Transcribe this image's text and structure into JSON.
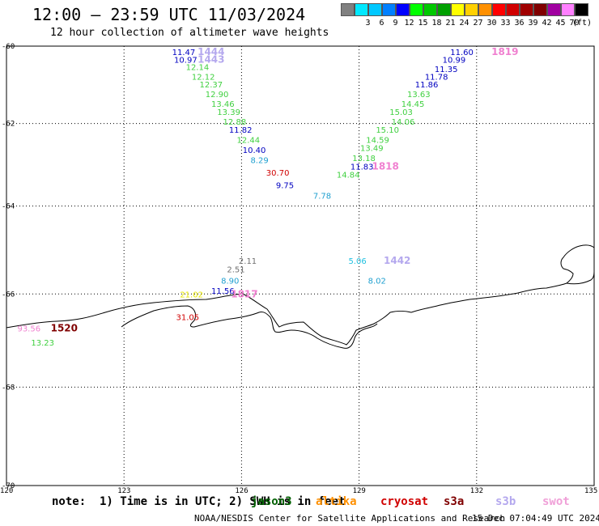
{
  "header": {
    "title": "12:00 – 23:59 UTC 11/03/2024",
    "subtitle": "12 hour collection of altimeter wave heights"
  },
  "legend_scale": {
    "unit": "(ft)",
    "bins": [
      {
        "label": "",
        "color": "#808080"
      },
      {
        "label": "3",
        "color": "#00e8ff"
      },
      {
        "label": "6",
        "color": "#00c8ff"
      },
      {
        "label": "9",
        "color": "#0080ff"
      },
      {
        "label": "12",
        "color": "#0000ff"
      },
      {
        "label": "15",
        "color": "#00ff00"
      },
      {
        "label": "18",
        "color": "#00c800"
      },
      {
        "label": "21",
        "color": "#00a000"
      },
      {
        "label": "24",
        "color": "#ffff00"
      },
      {
        "label": "27",
        "color": "#ffd000"
      },
      {
        "label": "30",
        "color": "#ff9000"
      },
      {
        "label": "33",
        "color": "#ff0000"
      },
      {
        "label": "36",
        "color": "#d00000"
      },
      {
        "label": "39",
        "color": "#a00000"
      },
      {
        "label": "42",
        "color": "#800000"
      },
      {
        "label": "45",
        "color": "#a000a0"
      },
      {
        "label": "70",
        "color": "#ff80ff"
      },
      {
        "label": "",
        "color": "#000000"
      }
    ]
  },
  "axes": {
    "lat_labels": [
      "-60",
      "-62",
      "-64",
      "-66",
      "-68",
      "-70"
    ],
    "lon_labels": [
      "120",
      "123",
      "126",
      "129",
      "132",
      "135"
    ]
  },
  "chart_data": {
    "type": "scatter",
    "title": "12:00 – 23:59 UTC 11/03/2024",
    "xlim": [
      120,
      135
    ],
    "ylim": [
      -70,
      -60
    ],
    "points": [
      {
        "lon": 124.6,
        "lat": -60.15,
        "text": "11.47",
        "color": "#0000c0"
      },
      {
        "lon": 125.25,
        "lat": -60.15,
        "text": "1444",
        "color": "#b4a8ee",
        "bold": true
      },
      {
        "lon": 124.65,
        "lat": -60.35,
        "text": "10.97",
        "color": "#0000c0"
      },
      {
        "lon": 125.25,
        "lat": -60.35,
        "text": "1443",
        "color": "#b4a8ee",
        "bold": true
      },
      {
        "lon": 124.95,
        "lat": -60.55,
        "text": "12.14",
        "color": "#40d040"
      },
      {
        "lon": 125.1,
        "lat": -60.8,
        "text": "12.12",
        "color": "#40d040"
      },
      {
        "lon": 125.3,
        "lat": -61.0,
        "text": "12.37",
        "color": "#40d040"
      },
      {
        "lon": 125.45,
        "lat": -61.25,
        "text": "12.90",
        "color": "#40d040"
      },
      {
        "lon": 125.6,
        "lat": -61.5,
        "text": "13.46",
        "color": "#40d040"
      },
      {
        "lon": 125.75,
        "lat": -61.7,
        "text": "13.39",
        "color": "#40d040"
      },
      {
        "lon": 125.9,
        "lat": -61.95,
        "text": "12.88",
        "color": "#40d040"
      },
      {
        "lon": 126.05,
        "lat": -62.15,
        "text": "11.82",
        "color": "#0000c0"
      },
      {
        "lon": 126.25,
        "lat": -62.4,
        "text": "12.44",
        "color": "#40d040"
      },
      {
        "lon": 126.4,
        "lat": -62.65,
        "text": "10.40",
        "color": "#0000c0"
      },
      {
        "lon": 126.6,
        "lat": -62.9,
        "text": "8.29",
        "color": "#20a0d0"
      },
      {
        "lon": 127.0,
        "lat": -63.2,
        "text": "30.70",
        "color": "#d00000"
      },
      {
        "lon": 127.25,
        "lat": -63.5,
        "text": "9.75",
        "color": "#0000c0"
      },
      {
        "lon": 128.2,
        "lat": -63.75,
        "text": "7.78",
        "color": "#20a0d0"
      },
      {
        "lon": 128.8,
        "lat": -63.25,
        "text": "14.84",
        "color": "#40d040"
      },
      {
        "lon": 129.15,
        "lat": -63.05,
        "text": "11.83",
        "color": "#0000c0"
      },
      {
        "lon": 129.7,
        "lat": -63.05,
        "text": "1818",
        "color": "#f080d0",
        "bold": true
      },
      {
        "lon": 129.2,
        "lat": -62.85,
        "text": "13.18",
        "color": "#40d040"
      },
      {
        "lon": 129.4,
        "lat": -62.6,
        "text": "13.49",
        "color": "#40d040"
      },
      {
        "lon": 129.55,
        "lat": -62.4,
        "text": "14.59",
        "color": "#40d040"
      },
      {
        "lon": 129.8,
        "lat": -62.15,
        "text": "15.10",
        "color": "#40d040"
      },
      {
        "lon": 130.2,
        "lat": -61.95,
        "text": "14.06",
        "color": "#40d040"
      },
      {
        "lon": 130.15,
        "lat": -61.7,
        "text": "15.03",
        "color": "#40d040"
      },
      {
        "lon": 130.45,
        "lat": -61.5,
        "text": "14.45",
        "color": "#40d040"
      },
      {
        "lon": 130.6,
        "lat": -61.25,
        "text": "13.63",
        "color": "#40d040"
      },
      {
        "lon": 130.8,
        "lat": -61.0,
        "text": "11.86",
        "color": "#0000c0"
      },
      {
        "lon": 131.05,
        "lat": -60.8,
        "text": "11.78",
        "color": "#0000c0"
      },
      {
        "lon": 131.3,
        "lat": -60.6,
        "text": "11.35",
        "color": "#0000c0"
      },
      {
        "lon": 131.5,
        "lat": -60.35,
        "text": "10.99",
        "color": "#0000c0"
      },
      {
        "lon": 131.7,
        "lat": -60.15,
        "text": "11.60",
        "color": "#0000c0"
      },
      {
        "lon": 132.75,
        "lat": -60.15,
        "text": "1819",
        "color": "#f080d0",
        "bold": true
      },
      {
        "lon": 126.3,
        "lat": -65.25,
        "text": "2.11",
        "color": "#707070"
      },
      {
        "lon": 126.0,
        "lat": -65.45,
        "text": "2.51",
        "color": "#707070"
      },
      {
        "lon": 125.85,
        "lat": -65.7,
        "text": "8.90",
        "color": "#20a0d0"
      },
      {
        "lon": 125.6,
        "lat": -65.92,
        "text": "11.56",
        "color": "#0000c0"
      },
      {
        "lon": 124.8,
        "lat": -66.0,
        "text": "21.02",
        "color": "#e8e800"
      },
      {
        "lon": 126.1,
        "lat": -66.0,
        "text": "1817",
        "color": "#f080d0",
        "bold": true
      },
      {
        "lon": 129.1,
        "lat": -65.25,
        "text": "5.06",
        "color": "#20c0e0"
      },
      {
        "lon": 130.0,
        "lat": -65.25,
        "text": "1442",
        "color": "#b4a8ee",
        "bold": true
      },
      {
        "lon": 129.6,
        "lat": -65.7,
        "text": "8.02",
        "color": "#20a0d0"
      },
      {
        "lon": 124.7,
        "lat": -66.5,
        "text": "31.05",
        "color": "#d00000"
      },
      {
        "lon": 120.65,
        "lat": -66.75,
        "text": "93.56",
        "color": "#f080d0"
      },
      {
        "lon": 121.5,
        "lat": -66.75,
        "text": "1520",
        "color": "#800000",
        "bold": true
      },
      {
        "lon": 121.0,
        "lat": -67.05,
        "text": "13.23",
        "color": "#40d040"
      }
    ]
  },
  "footer": {
    "note": "note:  1) Time is in UTC; 2) SWH is in feet",
    "satellites": [
      {
        "name": "jason3",
        "color": "#006000"
      },
      {
        "name": "altika",
        "color": "#ff9000"
      },
      {
        "name": "cryosat",
        "color": "#d00000"
      },
      {
        "name": "s3a",
        "color": "#800000"
      },
      {
        "name": "s3b",
        "color": "#b4a8ee"
      },
      {
        "name": "swot",
        "color": "#f0a0d8"
      }
    ],
    "credit": "NOAA/NESDIS Center for Satellite Applications and Research",
    "timestamp": "15 Dec 07:04:49 UTC 2024"
  }
}
